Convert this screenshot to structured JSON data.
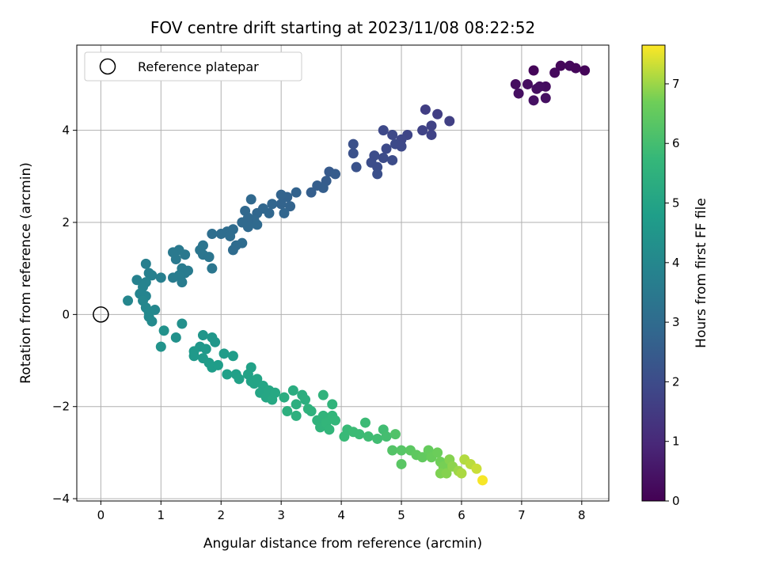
{
  "chart_data": {
    "type": "scatter",
    "title": "FOV centre drift starting at 2023/11/08 08:22:52",
    "xlabel": "Angular distance from reference (arcmin)",
    "ylabel": "Rotation from reference (arcmin)",
    "xlim": [
      -0.4,
      8.45
    ],
    "ylim": [
      -4.05,
      5.85
    ],
    "xticks": [
      0,
      1,
      2,
      3,
      4,
      5,
      6,
      7,
      8
    ],
    "yticks": [
      -4,
      -2,
      0,
      2,
      4
    ],
    "grid": true,
    "legend": {
      "position": "top-left",
      "entries": [
        "Reference platepar"
      ]
    },
    "reference_point": {
      "x": 0,
      "y": 0,
      "marker": "open-circle"
    },
    "colorbar": {
      "label": "Hours from first FF file",
      "min": 0,
      "max": 7.65,
      "ticks": [
        0,
        1,
        2,
        3,
        4,
        5,
        6,
        7
      ],
      "colormap": "viridis"
    },
    "points": [
      {
        "x": 7.2,
        "y": 5.3,
        "t": 0.1
      },
      {
        "x": 7.65,
        "y": 5.4,
        "t": 0.15
      },
      {
        "x": 7.8,
        "y": 5.4,
        "t": 0.2
      },
      {
        "x": 7.9,
        "y": 5.35,
        "t": 0.15
      },
      {
        "x": 8.05,
        "y": 5.3,
        "t": 0.1
      },
      {
        "x": 7.55,
        "y": 5.25,
        "t": 0.2
      },
      {
        "x": 6.9,
        "y": 5.0,
        "t": 0.3
      },
      {
        "x": 7.1,
        "y": 5.0,
        "t": 0.3
      },
      {
        "x": 7.25,
        "y": 4.9,
        "t": 0.35
      },
      {
        "x": 7.4,
        "y": 4.95,
        "t": 0.3
      },
      {
        "x": 6.95,
        "y": 4.8,
        "t": 0.35
      },
      {
        "x": 7.2,
        "y": 4.65,
        "t": 0.4
      },
      {
        "x": 7.4,
        "y": 4.7,
        "t": 0.35
      },
      {
        "x": 7.3,
        "y": 4.95,
        "t": 0.35
      },
      {
        "x": 5.4,
        "y": 4.45,
        "t": 1.6
      },
      {
        "x": 5.6,
        "y": 4.35,
        "t": 1.6
      },
      {
        "x": 5.8,
        "y": 4.2,
        "t": 1.65
      },
      {
        "x": 5.5,
        "y": 4.1,
        "t": 1.7
      },
      {
        "x": 5.35,
        "y": 4.0,
        "t": 1.75
      },
      {
        "x": 5.5,
        "y": 3.9,
        "t": 1.75
      },
      {
        "x": 5.1,
        "y": 3.9,
        "t": 1.8
      },
      {
        "x": 5.0,
        "y": 3.8,
        "t": 1.85
      },
      {
        "x": 4.7,
        "y": 4.0,
        "t": 1.9
      },
      {
        "x": 4.85,
        "y": 3.9,
        "t": 1.9
      },
      {
        "x": 4.75,
        "y": 3.6,
        "t": 1.95
      },
      {
        "x": 4.9,
        "y": 3.7,
        "t": 1.95
      },
      {
        "x": 5.0,
        "y": 3.65,
        "t": 1.9
      },
      {
        "x": 4.7,
        "y": 3.4,
        "t": 2.0
      },
      {
        "x": 4.85,
        "y": 3.35,
        "t": 2.0
      },
      {
        "x": 4.55,
        "y": 3.45,
        "t": 2.05
      },
      {
        "x": 4.5,
        "y": 3.3,
        "t": 2.05
      },
      {
        "x": 4.6,
        "y": 3.2,
        "t": 2.05
      },
      {
        "x": 4.6,
        "y": 3.05,
        "t": 2.1
      },
      {
        "x": 4.2,
        "y": 3.7,
        "t": 2.15
      },
      {
        "x": 4.2,
        "y": 3.5,
        "t": 2.15
      },
      {
        "x": 4.25,
        "y": 3.2,
        "t": 2.2
      },
      {
        "x": 3.8,
        "y": 3.1,
        "t": 2.45
      },
      {
        "x": 3.9,
        "y": 3.05,
        "t": 2.5
      },
      {
        "x": 3.75,
        "y": 2.9,
        "t": 2.5
      },
      {
        "x": 3.7,
        "y": 2.75,
        "t": 2.55
      },
      {
        "x": 3.6,
        "y": 2.8,
        "t": 2.55
      },
      {
        "x": 3.5,
        "y": 2.65,
        "t": 2.6
      },
      {
        "x": 3.25,
        "y": 2.65,
        "t": 2.7
      },
      {
        "x": 3.1,
        "y": 2.55,
        "t": 2.7
      },
      {
        "x": 3.0,
        "y": 2.6,
        "t": 2.75
      },
      {
        "x": 3.0,
        "y": 2.4,
        "t": 2.75
      },
      {
        "x": 3.15,
        "y": 2.35,
        "t": 2.75
      },
      {
        "x": 2.85,
        "y": 2.4,
        "t": 2.8
      },
      {
        "x": 3.05,
        "y": 2.2,
        "t": 2.8
      },
      {
        "x": 2.8,
        "y": 2.2,
        "t": 2.85
      },
      {
        "x": 2.6,
        "y": 2.2,
        "t": 2.85
      },
      {
        "x": 2.7,
        "y": 2.3,
        "t": 2.85
      },
      {
        "x": 2.5,
        "y": 2.5,
        "t": 2.9
      },
      {
        "x": 2.4,
        "y": 2.25,
        "t": 2.9
      },
      {
        "x": 2.55,
        "y": 2.05,
        "t": 2.9
      },
      {
        "x": 2.45,
        "y": 2.1,
        "t": 2.9
      },
      {
        "x": 2.6,
        "y": 1.95,
        "t": 2.95
      },
      {
        "x": 2.45,
        "y": 1.9,
        "t": 2.95
      },
      {
        "x": 2.35,
        "y": 2.0,
        "t": 2.95
      },
      {
        "x": 2.2,
        "y": 1.85,
        "t": 3.0
      },
      {
        "x": 2.1,
        "y": 1.8,
        "t": 3.05
      },
      {
        "x": 2.0,
        "y": 1.75,
        "t": 3.05
      },
      {
        "x": 1.85,
        "y": 1.75,
        "t": 3.1
      },
      {
        "x": 2.35,
        "y": 1.55,
        "t": 3.0
      },
      {
        "x": 2.25,
        "y": 1.5,
        "t": 3.0
      },
      {
        "x": 2.2,
        "y": 1.4,
        "t": 3.0
      },
      {
        "x": 2.15,
        "y": 1.7,
        "t": 3.05
      },
      {
        "x": 1.7,
        "y": 1.5,
        "t": 3.3
      },
      {
        "x": 1.65,
        "y": 1.4,
        "t": 3.35
      },
      {
        "x": 1.7,
        "y": 1.3,
        "t": 3.35
      },
      {
        "x": 1.8,
        "y": 1.25,
        "t": 3.35
      },
      {
        "x": 1.85,
        "y": 1.0,
        "t": 3.4
      },
      {
        "x": 1.4,
        "y": 1.3,
        "t": 3.45
      },
      {
        "x": 1.3,
        "y": 1.4,
        "t": 3.5
      },
      {
        "x": 1.2,
        "y": 1.35,
        "t": 3.5
      },
      {
        "x": 1.25,
        "y": 1.2,
        "t": 3.5
      },
      {
        "x": 1.35,
        "y": 1.0,
        "t": 3.55
      },
      {
        "x": 1.4,
        "y": 0.9,
        "t": 3.55
      },
      {
        "x": 1.45,
        "y": 0.95,
        "t": 3.55
      },
      {
        "x": 1.3,
        "y": 0.85,
        "t": 3.6
      },
      {
        "x": 1.2,
        "y": 0.8,
        "t": 3.6
      },
      {
        "x": 1.35,
        "y": 0.7,
        "t": 3.6
      },
      {
        "x": 1.0,
        "y": 0.8,
        "t": 3.7
      },
      {
        "x": 0.8,
        "y": 0.9,
        "t": 3.75
      },
      {
        "x": 0.85,
        "y": 0.85,
        "t": 3.75
      },
      {
        "x": 0.75,
        "y": 1.1,
        "t": 3.7
      },
      {
        "x": 0.6,
        "y": 0.75,
        "t": 3.8
      },
      {
        "x": 0.75,
        "y": 0.7,
        "t": 3.85
      },
      {
        "x": 0.7,
        "y": 0.6,
        "t": 3.85
      },
      {
        "x": 0.65,
        "y": 0.45,
        "t": 3.9
      },
      {
        "x": 0.75,
        "y": 0.4,
        "t": 3.9
      },
      {
        "x": 0.7,
        "y": 0.3,
        "t": 3.95
      },
      {
        "x": 0.45,
        "y": 0.3,
        "t": 3.95
      },
      {
        "x": 0.75,
        "y": 0.15,
        "t": 4.0
      },
      {
        "x": 0.9,
        "y": 0.1,
        "t": 4.0
      },
      {
        "x": 0.8,
        "y": 0.05,
        "t": 4.05
      },
      {
        "x": 0.8,
        "y": -0.05,
        "t": 4.05
      },
      {
        "x": 0.85,
        "y": -0.15,
        "t": 4.1
      },
      {
        "x": 1.35,
        "y": -0.2,
        "t": 4.3
      },
      {
        "x": 1.05,
        "y": -0.35,
        "t": 4.35
      },
      {
        "x": 1.25,
        "y": -0.5,
        "t": 4.35
      },
      {
        "x": 1.0,
        "y": -0.7,
        "t": 4.4
      },
      {
        "x": 1.7,
        "y": -0.45,
        "t": 4.5
      },
      {
        "x": 1.85,
        "y": -0.5,
        "t": 4.55
      },
      {
        "x": 1.9,
        "y": -0.6,
        "t": 4.55
      },
      {
        "x": 1.65,
        "y": -0.7,
        "t": 4.55
      },
      {
        "x": 1.75,
        "y": -0.75,
        "t": 4.6
      },
      {
        "x": 1.55,
        "y": -0.8,
        "t": 4.6
      },
      {
        "x": 1.55,
        "y": -0.9,
        "t": 4.6
      },
      {
        "x": 1.7,
        "y": -0.95,
        "t": 4.65
      },
      {
        "x": 1.8,
        "y": -1.05,
        "t": 4.7
      },
      {
        "x": 1.85,
        "y": -1.15,
        "t": 4.75
      },
      {
        "x": 1.95,
        "y": -1.1,
        "t": 4.75
      },
      {
        "x": 2.05,
        "y": -0.85,
        "t": 4.7
      },
      {
        "x": 2.2,
        "y": -0.9,
        "t": 4.75
      },
      {
        "x": 2.1,
        "y": -1.3,
        "t": 4.85
      },
      {
        "x": 2.25,
        "y": -1.3,
        "t": 4.85
      },
      {
        "x": 2.3,
        "y": -1.4,
        "t": 4.9
      },
      {
        "x": 2.5,
        "y": -1.15,
        "t": 4.9
      },
      {
        "x": 2.45,
        "y": -1.3,
        "t": 4.95
      },
      {
        "x": 2.5,
        "y": -1.45,
        "t": 4.95
      },
      {
        "x": 2.55,
        "y": -1.5,
        "t": 5.0
      },
      {
        "x": 2.6,
        "y": -1.4,
        "t": 5.0
      },
      {
        "x": 2.7,
        "y": -1.55,
        "t": 5.05
      },
      {
        "x": 2.65,
        "y": -1.7,
        "t": 5.05
      },
      {
        "x": 2.8,
        "y": -1.65,
        "t": 5.1
      },
      {
        "x": 2.75,
        "y": -1.8,
        "t": 5.1
      },
      {
        "x": 2.85,
        "y": -1.85,
        "t": 5.15
      },
      {
        "x": 2.9,
        "y": -1.7,
        "t": 5.15
      },
      {
        "x": 3.2,
        "y": -1.65,
        "t": 5.3
      },
      {
        "x": 3.05,
        "y": -1.8,
        "t": 5.3
      },
      {
        "x": 3.35,
        "y": -1.75,
        "t": 5.35
      },
      {
        "x": 3.4,
        "y": -1.85,
        "t": 5.4
      },
      {
        "x": 3.25,
        "y": -1.95,
        "t": 5.4
      },
      {
        "x": 3.1,
        "y": -2.1,
        "t": 5.45
      },
      {
        "x": 3.25,
        "y": -2.2,
        "t": 5.45
      },
      {
        "x": 3.45,
        "y": -2.05,
        "t": 5.5
      },
      {
        "x": 3.5,
        "y": -2.1,
        "t": 5.5
      },
      {
        "x": 3.6,
        "y": -2.3,
        "t": 5.55
      },
      {
        "x": 3.7,
        "y": -2.2,
        "t": 5.6
      },
      {
        "x": 3.65,
        "y": -2.45,
        "t": 5.6
      },
      {
        "x": 3.75,
        "y": -2.35,
        "t": 5.65
      },
      {
        "x": 3.8,
        "y": -2.5,
        "t": 5.65
      },
      {
        "x": 3.85,
        "y": -2.2,
        "t": 5.65
      },
      {
        "x": 3.7,
        "y": -1.75,
        "t": 5.55
      },
      {
        "x": 3.85,
        "y": -1.95,
        "t": 5.6
      },
      {
        "x": 3.9,
        "y": -2.3,
        "t": 5.7
      },
      {
        "x": 4.05,
        "y": -2.65,
        "t": 5.8
      },
      {
        "x": 4.1,
        "y": -2.5,
        "t": 5.8
      },
      {
        "x": 4.2,
        "y": -2.55,
        "t": 5.85
      },
      {
        "x": 4.3,
        "y": -2.6,
        "t": 5.85
      },
      {
        "x": 4.4,
        "y": -2.35,
        "t": 5.85
      },
      {
        "x": 4.45,
        "y": -2.65,
        "t": 5.9
      },
      {
        "x": 4.6,
        "y": -2.7,
        "t": 5.95
      },
      {
        "x": 4.7,
        "y": -2.5,
        "t": 5.95
      },
      {
        "x": 4.75,
        "y": -2.65,
        "t": 6.0
      },
      {
        "x": 4.9,
        "y": -2.6,
        "t": 6.2
      },
      {
        "x": 4.85,
        "y": -2.95,
        "t": 6.25
      },
      {
        "x": 5.0,
        "y": -2.95,
        "t": 6.3
      },
      {
        "x": 5.0,
        "y": -3.25,
        "t": 6.35
      },
      {
        "x": 5.15,
        "y": -2.95,
        "t": 6.4
      },
      {
        "x": 5.25,
        "y": -3.05,
        "t": 6.45
      },
      {
        "x": 5.35,
        "y": -3.1,
        "t": 6.5
      },
      {
        "x": 5.45,
        "y": -2.95,
        "t": 6.55
      },
      {
        "x": 5.5,
        "y": -3.1,
        "t": 6.6
      },
      {
        "x": 5.6,
        "y": -3.0,
        "t": 6.65
      },
      {
        "x": 5.65,
        "y": -3.2,
        "t": 6.7
      },
      {
        "x": 5.7,
        "y": -3.3,
        "t": 6.75
      },
      {
        "x": 5.65,
        "y": -3.45,
        "t": 6.8
      },
      {
        "x": 5.75,
        "y": -3.45,
        "t": 6.85
      },
      {
        "x": 5.8,
        "y": -3.15,
        "t": 6.85
      },
      {
        "x": 5.85,
        "y": -3.3,
        "t": 6.9
      },
      {
        "x": 5.95,
        "y": -3.4,
        "t": 7.0
      },
      {
        "x": 6.0,
        "y": -3.45,
        "t": 7.1
      },
      {
        "x": 6.05,
        "y": -3.15,
        "t": 7.15
      },
      {
        "x": 6.15,
        "y": -3.25,
        "t": 7.2
      },
      {
        "x": 6.25,
        "y": -3.35,
        "t": 7.3
      },
      {
        "x": 6.35,
        "y": -3.6,
        "t": 7.6
      }
    ]
  }
}
